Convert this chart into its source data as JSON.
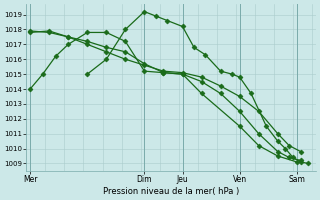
{
  "bg_color": "#cce8e8",
  "grid_color": "#aacccc",
  "line_color": "#1a6b1a",
  "marker": "D",
  "markersize": 2.5,
  "linewidth": 0.9,
  "title": "Pression niveau de la mer( hPa )",
  "ylabel_ticks": [
    1009,
    1010,
    1011,
    1012,
    1013,
    1014,
    1015,
    1016,
    1017,
    1018,
    1019
  ],
  "ylim": [
    1008.5,
    1019.7
  ],
  "xtick_labels": [
    "Mer",
    "",
    "Dim",
    "Jeu",
    "",
    "Ven",
    "",
    "Sam"
  ],
  "xtick_positions": [
    0,
    1,
    3,
    4,
    5,
    5.5,
    6,
    7
  ],
  "xlim": [
    -0.1,
    7.5
  ],
  "vlines": [
    0,
    3.0,
    4.0,
    5.5,
    7.0
  ],
  "series": [
    [
      1014.0,
      1015.0,
      1016.2,
      1017.0,
      1017.8,
      1017.8,
      1017.2,
      1015.2,
      1015.1,
      1015.0,
      1013.7,
      1011.5,
      1010.2,
      1009.5,
      1009.1
    ],
    [
      1017.9,
      1017.8,
      1017.5,
      1017.0,
      1016.5,
      1016.0,
      1015.6,
      1015.2,
      1015.1,
      1014.8,
      1014.2,
      1013.5,
      1012.5,
      1011.0,
      1010.2,
      1009.8
    ],
    [
      1017.8,
      1017.9,
      1017.5,
      1017.2,
      1016.8,
      1016.5,
      1015.7,
      1015.1,
      1015.0,
      1014.5,
      1013.7,
      1012.5,
      1011.0,
      1009.8,
      1009.4,
      1009.2
    ],
    [
      1015.0,
      1016.0,
      1018.0,
      1019.2,
      1018.9,
      1018.6,
      1018.2,
      1016.8,
      1016.3,
      1015.2,
      1015.0,
      1014.8,
      1013.7,
      1011.5,
      1010.5,
      1010.0,
      1009.4,
      1009.1,
      1009.0
    ]
  ],
  "x_series": [
    [
      0,
      0.33,
      0.67,
      1.0,
      1.5,
      2.0,
      2.5,
      3.0,
      3.5,
      4.0,
      4.5,
      5.5,
      6.0,
      6.5,
      7.0
    ],
    [
      0,
      0.5,
      1.0,
      1.5,
      2.0,
      2.5,
      3.0,
      3.5,
      4.0,
      4.5,
      5.0,
      5.5,
      6.0,
      6.5,
      6.8,
      7.1
    ],
    [
      0,
      0.5,
      1.0,
      1.5,
      2.0,
      2.5,
      3.0,
      3.5,
      4.0,
      4.5,
      5.0,
      5.5,
      6.0,
      6.5,
      6.8,
      7.1
    ],
    [
      1.5,
      2.0,
      2.5,
      3.0,
      3.3,
      3.6,
      4.0,
      4.3,
      4.6,
      5.0,
      5.3,
      5.5,
      5.8,
      6.2,
      6.5,
      6.7,
      6.9,
      7.1,
      7.3
    ]
  ]
}
